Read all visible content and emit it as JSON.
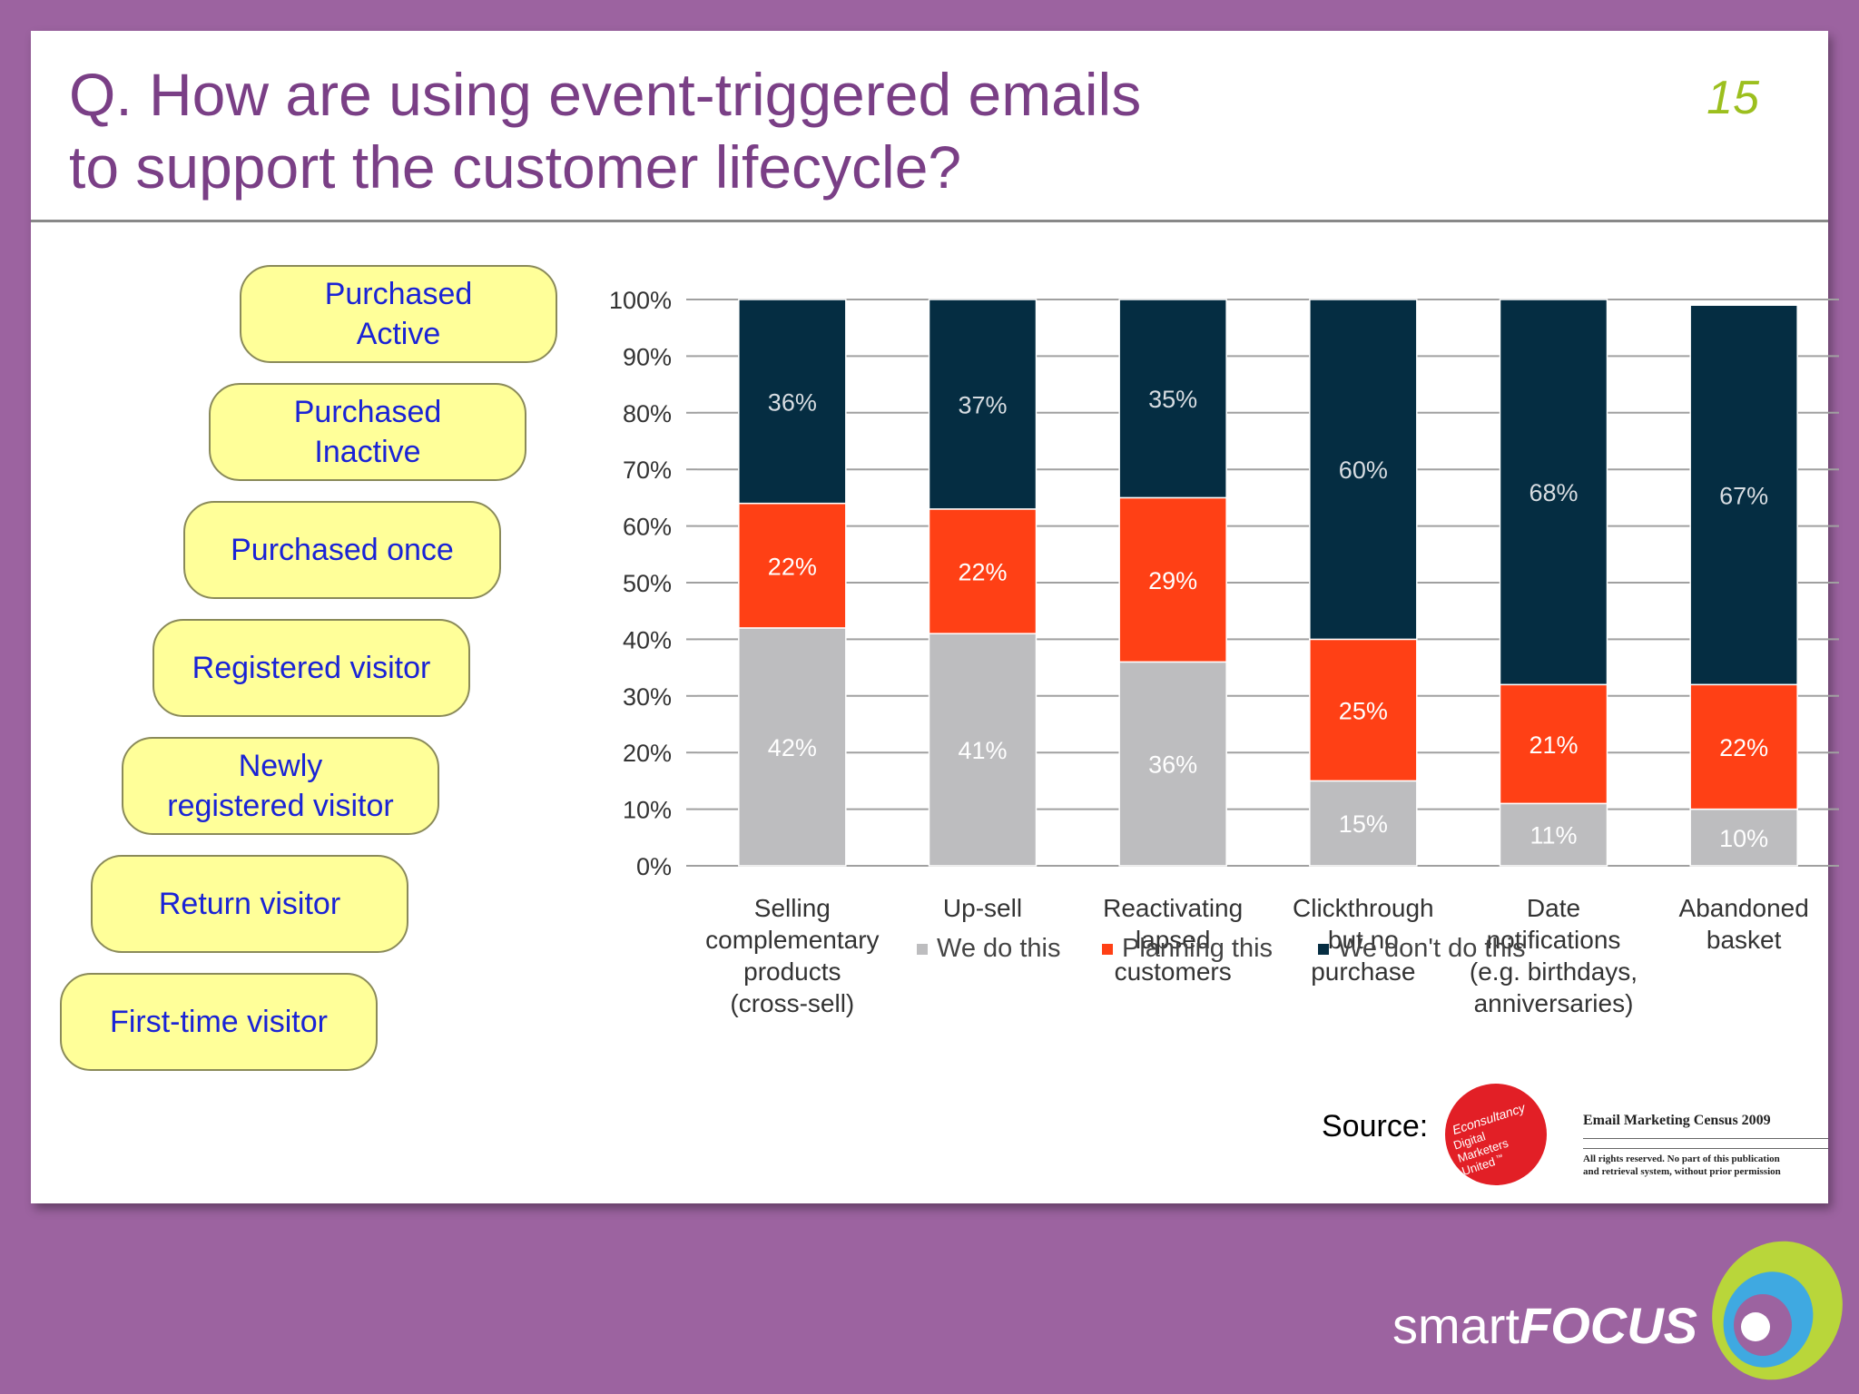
{
  "title": {
    "line1": "Q. How are using event-triggered emails",
    "line2": "to support the customer lifecycle?"
  },
  "page_number": "15",
  "lifecycle_stages": [
    "Purchased\nActive",
    "Purchased\nInactive",
    "Purchased once",
    "Registered visitor",
    "Newly\nregistered visitor",
    "Return visitor",
    "First-time visitor"
  ],
  "colors": {
    "we_do": "#bdbdbf",
    "planning": "#ff4015",
    "dont": "#052d42",
    "title": "#7a3f86",
    "pill_text": "#1a23d6",
    "pill_fill": "#ffff99"
  },
  "chart_data": {
    "type": "bar",
    "stacked": true,
    "percent_axis": true,
    "categories": [
      [
        "Selling",
        "complementary",
        "products",
        "(cross-sell)"
      ],
      [
        "Up-sell"
      ],
      [
        "Reactivating",
        "lapsed",
        "customers"
      ],
      [
        "Clickthrough",
        "but no",
        "purchase"
      ],
      [
        "Date",
        "notifications",
        "(e.g. birthdays,",
        "anniversaries)"
      ],
      [
        "Abandoned",
        "basket"
      ]
    ],
    "series": [
      {
        "name": "We do this",
        "values": [
          42,
          41,
          36,
          15,
          11,
          10
        ],
        "labels": [
          "42%",
          "41%",
          "36%",
          "15%",
          "11%",
          "10%"
        ]
      },
      {
        "name": "Planning this",
        "values": [
          22,
          22,
          29,
          25,
          21,
          22
        ],
        "labels": [
          "22%",
          "22%",
          "29%",
          "25%",
          "21%",
          "22%"
        ]
      },
      {
        "name": "We don't do this",
        "values": [
          36,
          37,
          35,
          60,
          68,
          67
        ],
        "labels": [
          "36%",
          "37%",
          "35%",
          "60%",
          "68%",
          "67%"
        ]
      }
    ],
    "y_ticks": [
      "0%",
      "10%",
      "20%",
      "30%",
      "40%",
      "50%",
      "60%",
      "70%",
      "80%",
      "90%",
      "100%"
    ],
    "ylim": [
      0,
      100
    ],
    "grid": true,
    "legend_position": "bottom"
  },
  "source": {
    "label": "Source:",
    "logo_text": [
      "Econsultancy",
      "Digital",
      "Marketers",
      "United"
    ],
    "logo_trademark": "™",
    "publication": "Email Marketing Census 2009",
    "rights_line1": "All rights reserved. No part of this publication",
    "rights_line2": "and retrieval system, without prior permission"
  },
  "brand": {
    "name_prefix": "smart",
    "name_suffix": "FOCUS"
  }
}
